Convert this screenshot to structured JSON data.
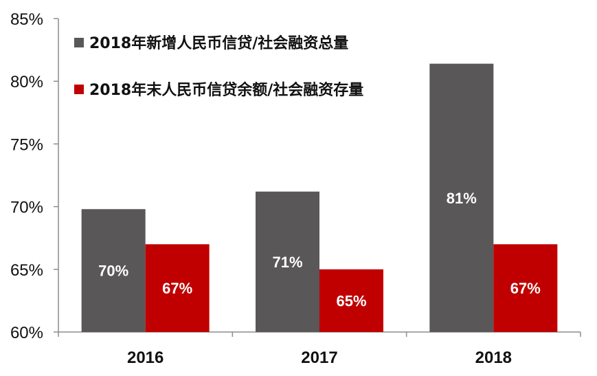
{
  "chart_data": {
    "type": "bar",
    "categories": [
      "2016",
      "2017",
      "2018"
    ],
    "series": [
      {
        "name": "2018年新增人民币信贷/社会融资总量",
        "values": [
          69.8,
          71.2,
          81.4
        ],
        "labels": [
          "70%",
          "71%",
          "81%"
        ],
        "color": "#595757"
      },
      {
        "name": "2018年末人民币信贷余额/社会融资存量",
        "values": [
          67.0,
          65.0,
          67.0
        ],
        "labels": [
          "67%",
          "65%",
          "67%"
        ],
        "color": "#c00000"
      }
    ],
    "title": "",
    "xlabel": "",
    "ylabel": "",
    "ylim": [
      60,
      85
    ],
    "yticks": [
      60,
      65,
      70,
      75,
      80,
      85
    ],
    "ytick_labels": [
      "60%",
      "65%",
      "70%",
      "75%",
      "80%",
      "85%"
    ],
    "grid": false,
    "legend_position": "top-left"
  }
}
